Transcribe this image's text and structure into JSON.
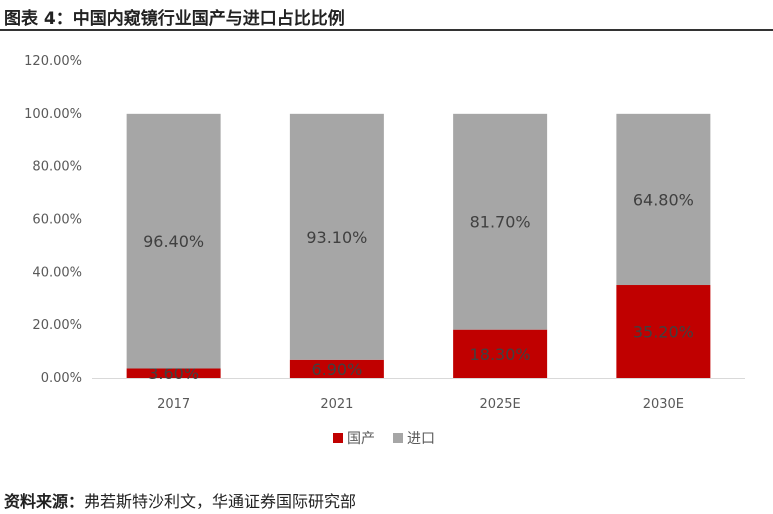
{
  "figure": {
    "title": "图表 4：中国内窥镜行业国产与进口占比比例",
    "source_label": "资料来源：",
    "source_text": "弗若斯特沙利文，华通证券国际研究部"
  },
  "chart_data": {
    "type": "bar",
    "stacked": true,
    "categories": [
      "2017",
      "2021",
      "2025E",
      "2030E"
    ],
    "series": [
      {
        "name": "国产",
        "values": [
          3.6,
          6.9,
          18.3,
          35.2
        ],
        "labels": [
          "3.60%",
          "6.90%",
          "18.30%",
          "35.20%"
        ],
        "color": "#c00000"
      },
      {
        "name": "进口",
        "values": [
          96.4,
          93.1,
          81.7,
          64.8
        ],
        "labels": [
          "96.40%",
          "93.10%",
          "81.70%",
          "64.80%"
        ],
        "color": "#a6a6a6"
      }
    ],
    "ylim": [
      0,
      120
    ],
    "yticks": [
      "0.00%",
      "20.00%",
      "40.00%",
      "60.00%",
      "80.00%",
      "100.00%",
      "120.00%"
    ],
    "ytick_values": [
      0,
      20,
      40,
      60,
      80,
      100,
      120
    ],
    "grid": false,
    "legend_position": "bottom"
  }
}
